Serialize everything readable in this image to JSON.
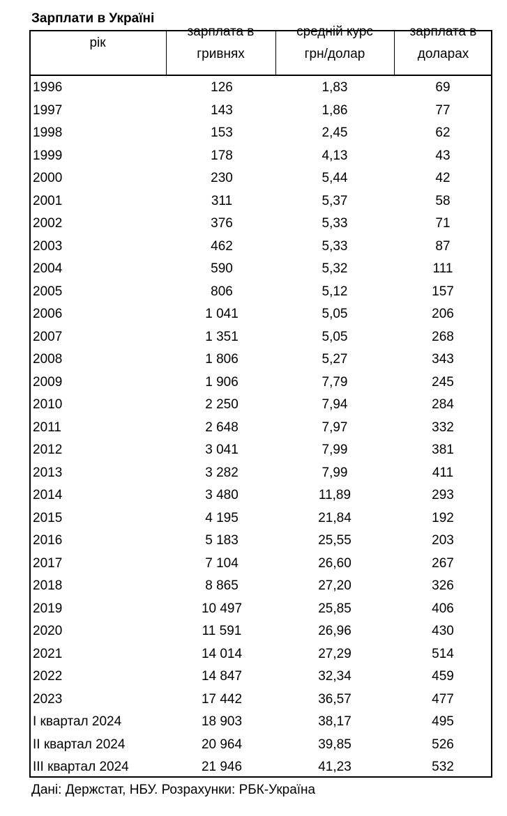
{
  "title": "Зарплати в Україні",
  "table": {
    "header": [
      [
        "рік"
      ],
      [
        "зарплата в",
        "гривнях"
      ],
      [
        "средній курс",
        "грн/долар"
      ],
      [
        "зарплата в",
        "доларах"
      ]
    ],
    "rows": [
      [
        "1996",
        "126",
        "1,83",
        "69"
      ],
      [
        "1997",
        "143",
        "1,86",
        "77"
      ],
      [
        "1998",
        "153",
        "2,45",
        "62"
      ],
      [
        "1999",
        "178",
        "4,13",
        "43"
      ],
      [
        "2000",
        "230",
        "5,44",
        "42"
      ],
      [
        "2001",
        "311",
        "5,37",
        "58"
      ],
      [
        "2002",
        "376",
        "5,33",
        "71"
      ],
      [
        "2003",
        "462",
        "5,33",
        "87"
      ],
      [
        "2004",
        "590",
        "5,32",
        "111"
      ],
      [
        "2005",
        "806",
        "5,12",
        "157"
      ],
      [
        "2006",
        "1 041",
        "5,05",
        "206"
      ],
      [
        "2007",
        "1 351",
        "5,05",
        "268"
      ],
      [
        "2008",
        "1 806",
        "5,27",
        "343"
      ],
      [
        "2009",
        "1 906",
        "7,79",
        "245"
      ],
      [
        "2010",
        "2 250",
        "7,94",
        "284"
      ],
      [
        "2011",
        "2 648",
        "7,97",
        "332"
      ],
      [
        "2012",
        "3 041",
        "7,99",
        "381"
      ],
      [
        "2013",
        "3 282",
        "7,99",
        "411"
      ],
      [
        "2014",
        "3 480",
        "11,89",
        "293"
      ],
      [
        "2015",
        "4 195",
        "21,84",
        "192"
      ],
      [
        "2016",
        "5 183",
        "25,55",
        "203"
      ],
      [
        "2017",
        "7 104",
        "26,60",
        "267"
      ],
      [
        "2018",
        "8 865",
        "27,20",
        "326"
      ],
      [
        "2019",
        "10 497",
        "25,85",
        "406"
      ],
      [
        "2020",
        "11 591",
        "26,96",
        "430"
      ],
      [
        "2021",
        "14 014",
        "27,29",
        "514"
      ],
      [
        "2022",
        "14 847",
        "32,34",
        "459"
      ],
      [
        "2023",
        "17 442",
        "36,57",
        "477"
      ],
      [
        "I квартал 2024",
        "18 903",
        "38,17",
        "495"
      ],
      [
        "II квартал 2024",
        "20 964",
        "39,85",
        "526"
      ],
      [
        "III квартал 2024",
        "21 946",
        "41,23",
        "532"
      ]
    ]
  },
  "source": "Дані: Держстат, НБУ. Розрахунки: РБК-Україна"
}
